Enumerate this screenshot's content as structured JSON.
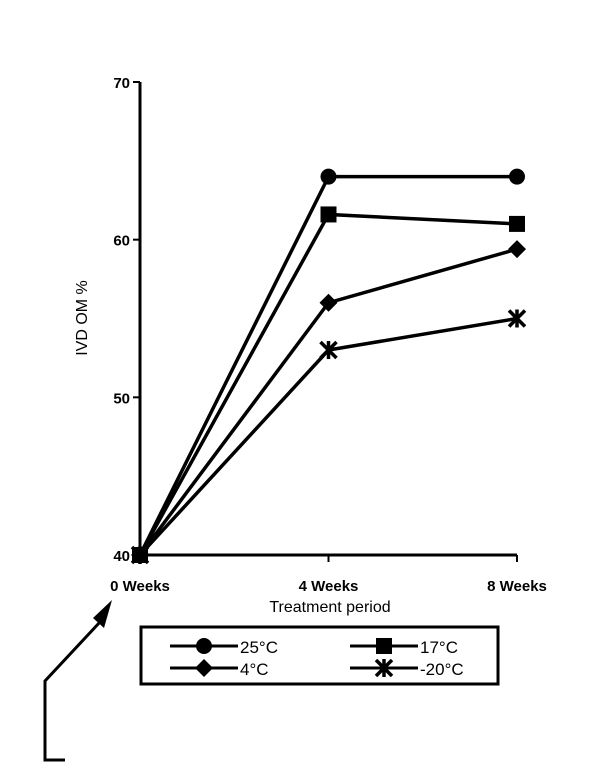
{
  "chart_data": {
    "type": "line",
    "title": "",
    "xlabel": "Treatment period",
    "ylabel": "IVD OM %",
    "categories": [
      "0 Weeks",
      "4 Weeks",
      "8 Weeks"
    ],
    "ylim": [
      40,
      70
    ],
    "yticks": [
      "40",
      "50",
      "60",
      "70"
    ],
    "grid": false,
    "legend_placement": "bottom",
    "series": [
      {
        "name": "25°C",
        "marker": "circle",
        "values": [
          40,
          64,
          64
        ]
      },
      {
        "name": "17°C",
        "marker": "square",
        "values": [
          40,
          61.6,
          61
        ]
      },
      {
        "name": "4°C",
        "marker": "diamond",
        "values": [
          40,
          56,
          59.4
        ]
      },
      {
        "name": "-20°C",
        "marker": "asterisk",
        "values": [
          40,
          53,
          55
        ]
      }
    ],
    "line_color": "#000000"
  }
}
